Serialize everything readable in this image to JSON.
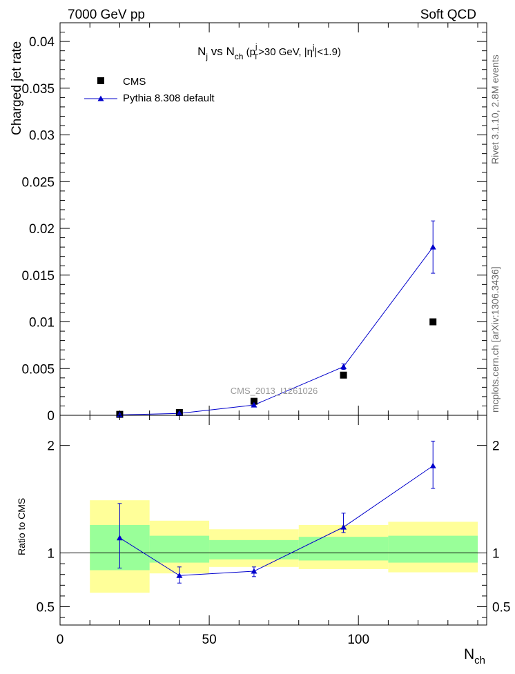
{
  "header": {
    "left_label": "7000 GeV pp",
    "right_label": "Soft QCD"
  },
  "side_labels": {
    "events": "Rivet 3.1.10,  2.8M events",
    "source": "mcplots.cern.ch [arXiv:1306.3436]"
  },
  "watermark": "CMS_2013_I1261026",
  "colors": {
    "mc_line": "#0000cc",
    "band_inner": "#99ff99",
    "band_outer": "#ffff99",
    "data_marker": "#000000"
  },
  "chart_data": [
    {
      "type": "scatter",
      "panel": "main",
      "title": {
        "main": "N",
        "sub1": "j",
        "mid": " vs N",
        "sub2": "ch",
        "rest1": " (p",
        "sup3": "j",
        "sub3": "T",
        "rest2": ">30 GeV, |η",
        "sup4": "j",
        "rest3": "|<1.9)"
      },
      "ylabel": "Charged jet rate",
      "xlabel": {
        "main": "N",
        "sub": "ch"
      },
      "xlim": [
        0,
        143
      ],
      "ylim": [
        0,
        0.042
      ],
      "yticks": [
        {
          "v": 0,
          "label": "0"
        },
        {
          "v": 0.005,
          "label": "0.005"
        },
        {
          "v": 0.01,
          "label": "0.01"
        },
        {
          "v": 0.015,
          "label": "0.015"
        },
        {
          "v": 0.02,
          "label": "0.02"
        },
        {
          "v": 0.025,
          "label": "0.025"
        },
        {
          "v": 0.03,
          "label": "0.03"
        },
        {
          "v": 0.035,
          "label": "0.035"
        },
        {
          "v": 0.04,
          "label": "0.04"
        }
      ],
      "legend_position": "top-left",
      "series": [
        {
          "name": "CMS",
          "marker": "square",
          "points": [
            {
              "x": 20,
              "y": 0.0001
            },
            {
              "x": 40,
              "y": 0.0003
            },
            {
              "x": 65,
              "y": 0.0015
            },
            {
              "x": 95,
              "y": 0.0043
            },
            {
              "x": 125,
              "y": 0.01
            }
          ]
        },
        {
          "name": "Pythia 8.308 default",
          "marker": "triangle",
          "points": [
            {
              "x": 20,
              "y": 5e-05,
              "lo": 5e-05,
              "hi": 5e-05
            },
            {
              "x": 40,
              "y": 0.0002,
              "lo": 0.0002,
              "hi": 0.0002
            },
            {
              "x": 65,
              "y": 0.0011,
              "lo": 0.0011,
              "hi": 0.0011
            },
            {
              "x": 95,
              "y": 0.0052,
              "lo": 0.0049,
              "hi": 0.0055
            },
            {
              "x": 125,
              "y": 0.018,
              "lo": 0.0152,
              "hi": 0.0208
            }
          ]
        }
      ]
    },
    {
      "type": "scatter",
      "panel": "ratio",
      "ylabel": "Ratio to CMS",
      "xlim": [
        0,
        143
      ],
      "ylim": [
        0.33,
        2.28
      ],
      "yticks": [
        {
          "v": 0.5,
          "label": "0.5"
        },
        {
          "v": 1,
          "label": "1"
        },
        {
          "v": 2,
          "label": "2"
        }
      ],
      "xticks": [
        {
          "v": 0,
          "label": "0"
        },
        {
          "v": 50,
          "label": "50"
        },
        {
          "v": 100,
          "label": "100"
        }
      ],
      "bands": [
        {
          "x0": 10,
          "x1": 30,
          "in_lo": 0.84,
          "in_hi": 1.26,
          "out_lo": 0.63,
          "out_hi": 1.49
        },
        {
          "x0": 30,
          "x1": 50,
          "in_lo": 0.91,
          "in_hi": 1.16,
          "out_lo": 0.81,
          "out_hi": 1.3
        },
        {
          "x0": 50,
          "x1": 80,
          "in_lo": 0.94,
          "in_hi": 1.12,
          "out_lo": 0.87,
          "out_hi": 1.22
        },
        {
          "x0": 80,
          "x1": 110,
          "in_lo": 0.93,
          "in_hi": 1.15,
          "out_lo": 0.85,
          "out_hi": 1.26
        },
        {
          "x0": 110,
          "x1": 140,
          "in_lo": 0.91,
          "in_hi": 1.16,
          "out_lo": 0.82,
          "out_hi": 1.29
        }
      ],
      "series": [
        {
          "name": "Pythia 8.308 default",
          "points": [
            {
              "x": 20,
              "y": 1.14,
              "lo": 0.86,
              "hi": 1.46
            },
            {
              "x": 40,
              "y": 0.79,
              "lo": 0.72,
              "hi": 0.87
            },
            {
              "x": 65,
              "y": 0.83,
              "lo": 0.78,
              "hi": 0.87
            },
            {
              "x": 95,
              "y": 1.24,
              "lo": 1.19,
              "hi": 1.37
            },
            {
              "x": 125,
              "y": 1.81,
              "lo": 1.6,
              "hi": 2.04
            }
          ]
        }
      ]
    }
  ]
}
